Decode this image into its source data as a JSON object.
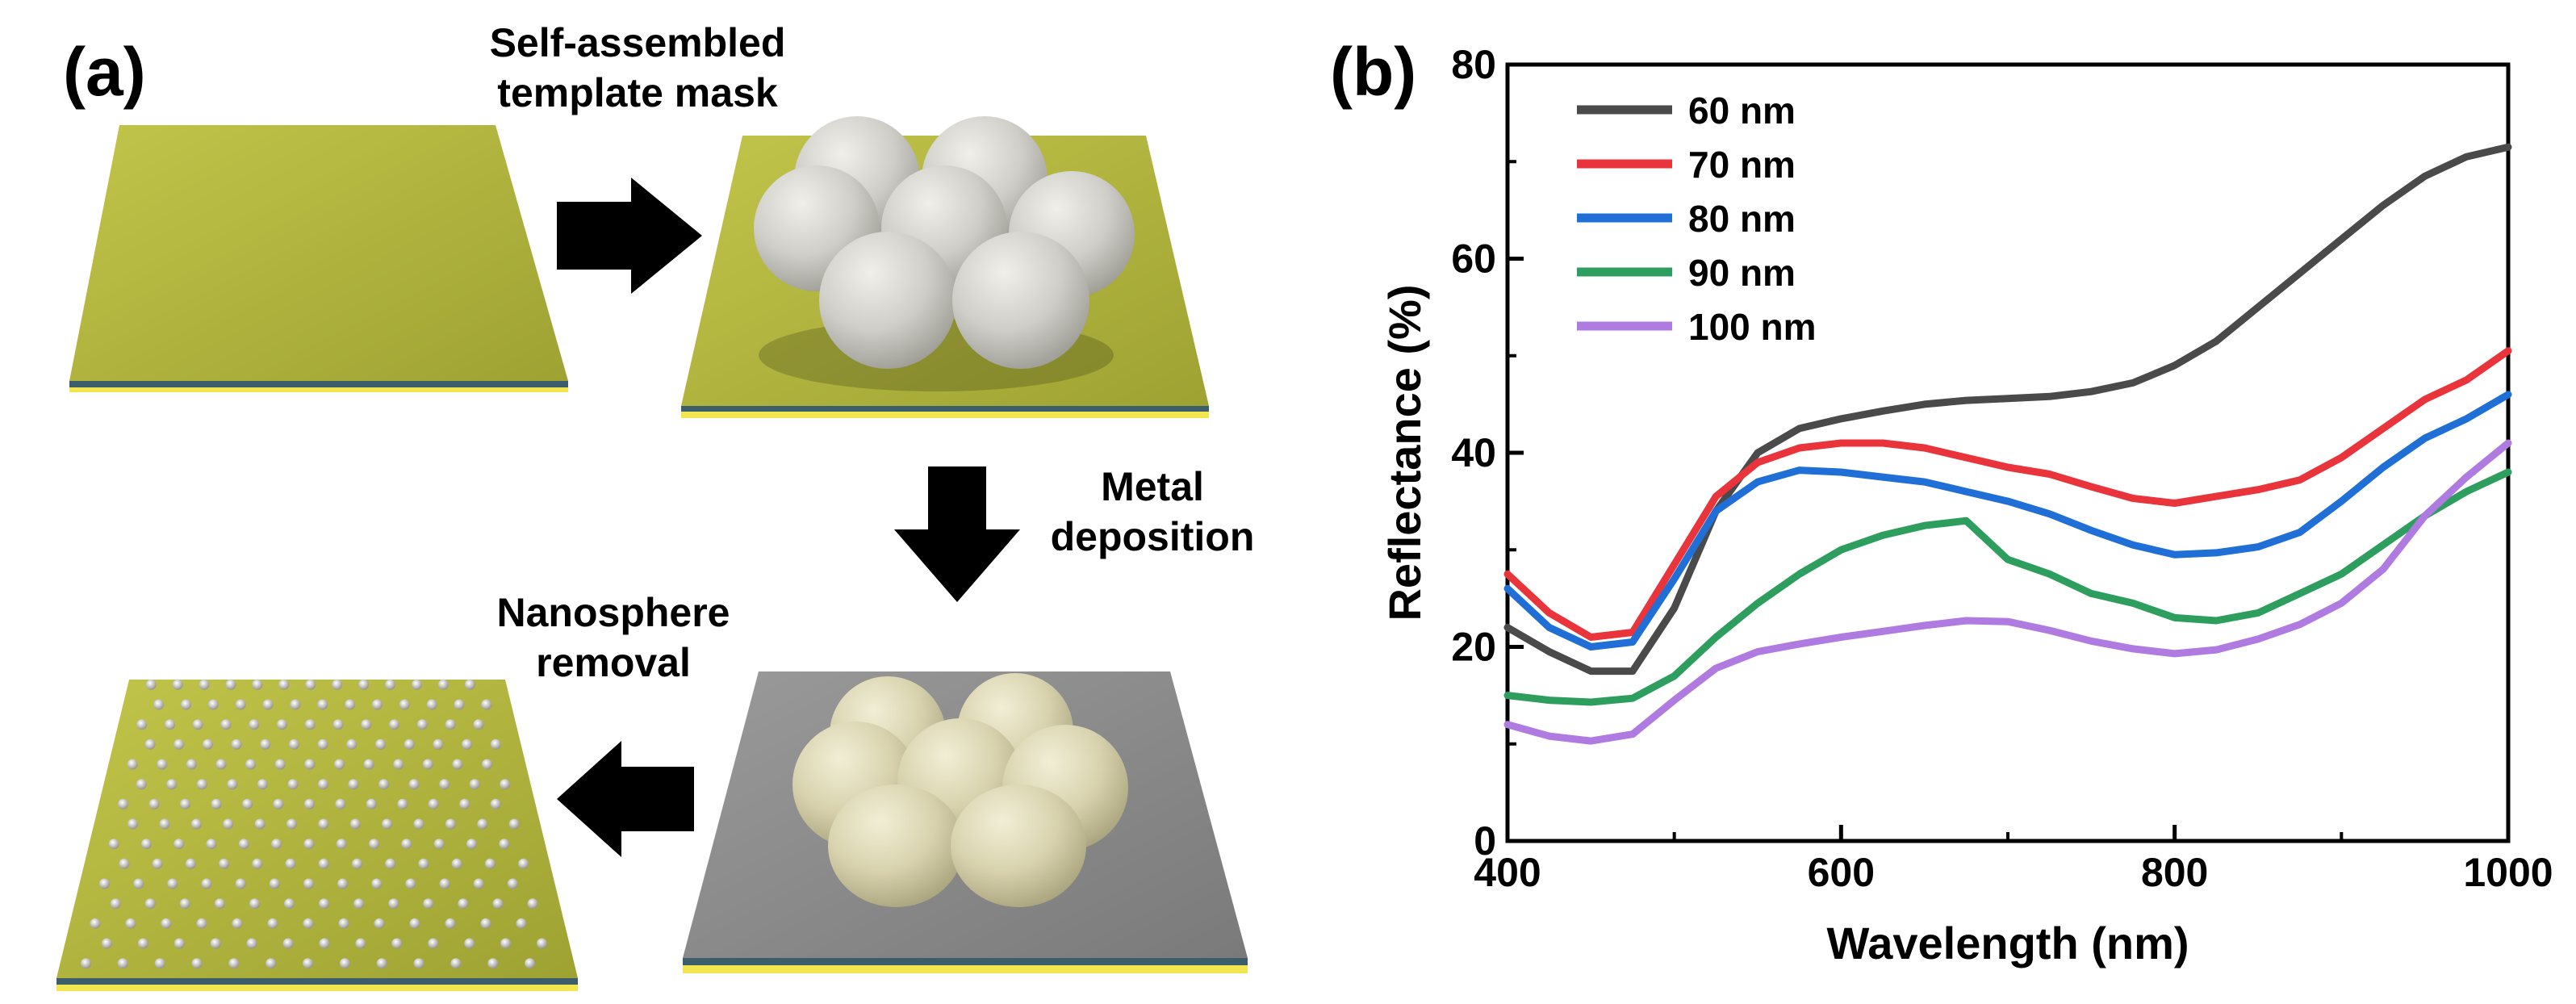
{
  "panel_a": {
    "label": "(a)",
    "step_mask": [
      "Self-assembled",
      "template mask"
    ],
    "step_metal": [
      "Metal",
      "deposition"
    ],
    "step_removal": [
      "Nanosphere",
      "removal"
    ],
    "colors": {
      "substrate": "#b5b83c",
      "metal": "#8c8c8c",
      "sphere": "#cfcec8",
      "coated_sphere": "#d7d2ad",
      "arrow": "#000000"
    }
  },
  "panel_b": {
    "label": "(b)"
  },
  "chart_data": {
    "type": "line",
    "title": "",
    "xlabel": "Wavelength (nm)",
    "ylabel": "Reflectance (%)",
    "xlim": [
      400,
      1000
    ],
    "ylim": [
      0,
      80
    ],
    "xticks": [
      400,
      600,
      800,
      1000
    ],
    "yticks": [
      0,
      20,
      40,
      60,
      80
    ],
    "legend_position": "top-left",
    "x": [
      400,
      425,
      450,
      475,
      500,
      525,
      550,
      575,
      600,
      625,
      650,
      675,
      700,
      725,
      750,
      775,
      800,
      825,
      850,
      875,
      900,
      925,
      950,
      975,
      1000
    ],
    "series": [
      {
        "name": "60 nm",
        "color": "#4a4a4a",
        "values": [
          22,
          19.5,
          17.5,
          17.5,
          24,
          34,
          40,
          42.5,
          43.5,
          44.3,
          45,
          45.4,
          45.6,
          45.8,
          46.3,
          47.2,
          49,
          51.5,
          55,
          58.5,
          62,
          65.5,
          68.5,
          70.5,
          71.5
        ]
      },
      {
        "name": "70 nm",
        "color": "#e8343a",
        "values": [
          27.5,
          23.5,
          21,
          21.5,
          28.5,
          35.5,
          39,
          40.5,
          41,
          41,
          40.5,
          39.5,
          38.5,
          37.8,
          36.5,
          35.3,
          34.8,
          35.5,
          36.2,
          37.2,
          39.5,
          42.5,
          45.5,
          47.5,
          50.5
        ]
      },
      {
        "name": "80 nm",
        "color": "#1f6fd6",
        "values": [
          26,
          22,
          20,
          20.5,
          27,
          34,
          37,
          38.2,
          38,
          37.5,
          37,
          36,
          35,
          33.7,
          32,
          30.5,
          29.5,
          29.7,
          30.3,
          31.8,
          35,
          38.5,
          41.5,
          43.5,
          46
        ]
      },
      {
        "name": "90 nm",
        "color": "#2e9e5f",
        "values": [
          15,
          14.5,
          14.3,
          14.7,
          17,
          21,
          24.5,
          27.5,
          30,
          31.5,
          32.5,
          33,
          29,
          27.5,
          25.5,
          24.5,
          23,
          22.7,
          23.5,
          25.5,
          27.5,
          30.5,
          33.5,
          36,
          38
        ]
      },
      {
        "name": "100 nm",
        "color": "#b07be0",
        "values": [
          12,
          10.8,
          10.3,
          11,
          14.5,
          17.8,
          19.5,
          20.3,
          21,
          21.6,
          22.2,
          22.7,
          22.6,
          21.7,
          20.6,
          19.8,
          19.3,
          19.7,
          20.8,
          22.3,
          24.5,
          28,
          33.5,
          37.5,
          41
        ]
      }
    ]
  }
}
